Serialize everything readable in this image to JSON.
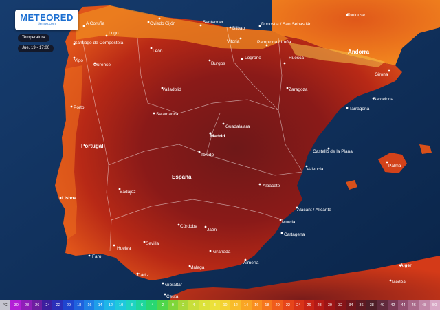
{
  "brand": {
    "name": "METEORED",
    "sub": "tiempo.com"
  },
  "layer": {
    "variable": "Temperatura",
    "time": "Jue, 19 - 17:00"
  },
  "countries": [
    {
      "id": "portugal",
      "label": "Portugal"
    },
    {
      "id": "espana",
      "label": "España"
    },
    {
      "id": "andorra",
      "label": "Andorra"
    }
  ],
  "cities": [
    "A Coruña",
    "Oviedo",
    "Gijón",
    "Santander",
    "Bilbao",
    "Donostia / San Sebastián",
    "Vitoria",
    "Pamplona / Iruña",
    "Logroño",
    "Burgos",
    "Lugo",
    "Santiago de Compostela",
    "Ourense",
    "Vigo",
    "León",
    "Valladolid",
    "Zaragoza",
    "Huesca",
    "Girona",
    "Barcelona",
    "Tarragona",
    "Toulouse",
    "Porto",
    "Salamanca",
    "Madrid",
    "Guadalajara",
    "Toledo",
    "Castelló de la Plana",
    "Valencia",
    "Palma",
    "Lisboa",
    "Badajoz",
    "Albacete",
    "Alacant / Alicante",
    "Murcia",
    "Cartagena",
    "Córdoba",
    "Jaén",
    "Sevilla",
    "Huelva",
    "Faro",
    "Granada",
    "Almería",
    "Málaga",
    "Cádiz",
    "Gibraltar",
    "Ceuta",
    "Alger",
    "Médéa"
  ],
  "legend": {
    "unit": "ºC",
    "values": [
      "-30",
      "-28",
      "-26",
      "-24",
      "-22",
      "-20",
      "-18",
      "-16",
      "-14",
      "-12",
      "-10",
      "-8",
      "-6",
      "-4",
      "-2",
      "0",
      "2",
      "4",
      "6",
      "8",
      "10",
      "12",
      "14",
      "16",
      "18",
      "20",
      "22",
      "24",
      "26",
      "28",
      "30",
      "32",
      "34",
      "36",
      "38",
      "40",
      "42",
      "44",
      "46",
      "48",
      "50"
    ],
    "colors": [
      "#b31fd6",
      "#8f1fb8",
      "#6d1fa0",
      "#3c1f9e",
      "#2a2fb8",
      "#1f45cf",
      "#1f62dd",
      "#1f80e6",
      "#1f9ee9",
      "#1fb6e8",
      "#1fc8dc",
      "#1fd3c2",
      "#1fd69d",
      "#29d772",
      "#4fd64a",
      "#7fd63a",
      "#a8d93a",
      "#c8de3a",
      "#dce23a",
      "#ece13a",
      "#f4d232",
      "#f8bc2a",
      "#f9a524",
      "#f98e20",
      "#f6761e",
      "#f05c1c",
      "#e6451a",
      "#d83318",
      "#c82416",
      "#b51a16",
      "#9e1416",
      "#861418",
      "#70161c",
      "#5e1a22",
      "#4f1f28",
      "#612a3c",
      "#7a3a55",
      "#935070",
      "#aa6a8a",
      "#c288a8",
      "#d9a8c6"
    ]
  }
}
